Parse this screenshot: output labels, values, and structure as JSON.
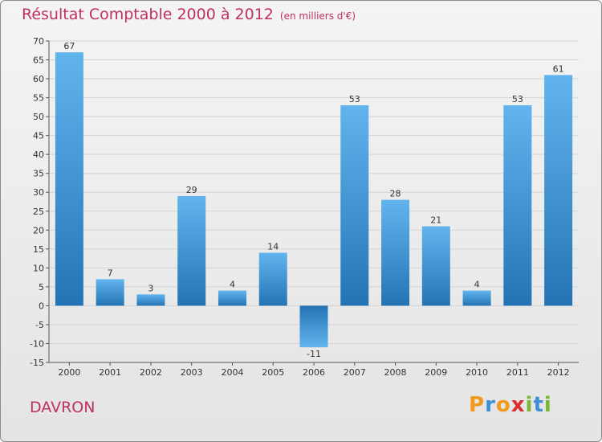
{
  "title": "Résultat Comptable 2000 à 2012",
  "subtitle": "(en milliers d'€)",
  "city": "DAVRON",
  "logo": {
    "text": "Proxiti",
    "letters": [
      {
        "ch": "P",
        "color": "#f39a1c"
      },
      {
        "ch": "r",
        "color": "#3d8fd6"
      },
      {
        "ch": "o",
        "color": "#f39a1c"
      },
      {
        "ch": "x",
        "color": "#d9302f"
      },
      {
        "ch": "i",
        "color": "#78b833"
      },
      {
        "ch": "t",
        "color": "#3d8fd6"
      },
      {
        "ch": "i",
        "color": "#78b833"
      }
    ]
  },
  "colors": {
    "title": "#c0315e",
    "bar_light": "#62b4ee",
    "bar_dark": "#2474b5",
    "grid": "#d4d4d4",
    "axis": "#555555"
  },
  "chart_data": {
    "type": "bar",
    "title": "Résultat Comptable 2000 à 2012",
    "subtitle": "(en milliers d'€)",
    "xlabel": "",
    "ylabel": "",
    "categories": [
      "2000",
      "2001",
      "2002",
      "2003",
      "2004",
      "2005",
      "2006",
      "2007",
      "2008",
      "2009",
      "2010",
      "2011",
      "2012"
    ],
    "values": [
      67,
      7,
      3,
      29,
      4,
      14,
      -11,
      53,
      28,
      21,
      4,
      53,
      61
    ],
    "value_labels": [
      "67",
      "7",
      "3",
      "29",
      "4",
      "14",
      "-11",
      "53",
      "28",
      "21",
      "4",
      "53",
      "61"
    ],
    "ylim": [
      -15,
      70
    ],
    "yticks": [
      -15,
      -10,
      -5,
      0,
      5,
      10,
      15,
      20,
      25,
      30,
      35,
      40,
      45,
      50,
      55,
      60,
      65,
      70
    ],
    "ytick_labels": [
      "-15",
      "-10",
      "-5",
      "0",
      "5",
      "10",
      "15",
      "20",
      "25",
      "30",
      "35",
      "40",
      "45",
      "50",
      "55",
      "60",
      "65",
      "70"
    ],
    "grid": true,
    "legend": "none"
  }
}
